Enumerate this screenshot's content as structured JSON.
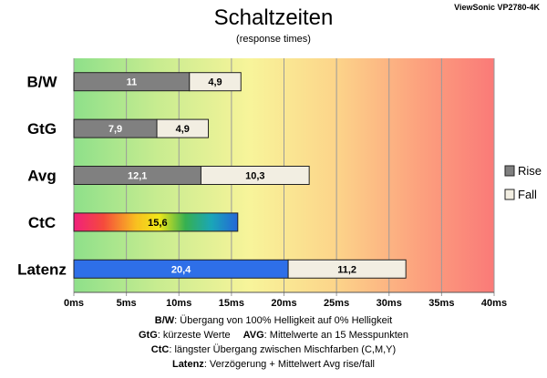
{
  "chart_data": {
    "type": "bar",
    "orientation": "horizontal",
    "stacked": true,
    "title": "Schaltzeiten",
    "subtitle": "(response times)",
    "model": "ViewSonic VP2780-4K",
    "categories": [
      "B/W",
      "GtG",
      "Avg",
      "CtC",
      "Latenz"
    ],
    "series": [
      {
        "name": "Rise",
        "values": [
          11,
          7.9,
          12.1,
          null,
          20.4
        ],
        "labels": [
          "11",
          "7,9",
          "12,1",
          "",
          "20,4"
        ],
        "color": "#808080"
      },
      {
        "name": "Fall",
        "values": [
          4.9,
          4.9,
          10.3,
          null,
          11.2
        ],
        "labels": [
          "4,9",
          "4,9",
          "10,3",
          "",
          "11,2"
        ],
        "color": "#f2eee2"
      }
    ],
    "ctc": {
      "value": 15.6,
      "label": "15,6"
    },
    "latenz_color": "#2e6fe8",
    "x_ticks": [
      "0ms",
      "5ms",
      "10ms",
      "15ms",
      "20ms",
      "25ms",
      "30ms",
      "35ms",
      "40ms"
    ],
    "xlim": [
      0,
      40
    ],
    "legend_position": "right",
    "background": "gradient green-yellow-red"
  },
  "notes": {
    "line1": {
      "bold": "B/W",
      "text": ":  Übergang von 100% Helligkeit auf 0% Helligkeit"
    },
    "line2a": {
      "bold": "GtG",
      "text": ": kürzeste  Werte"
    },
    "line2b": {
      "bold": "AVG",
      "text": ": Mittelwerte  an 15 Messpunkten"
    },
    "line3": {
      "bold": "CtC",
      "text": ": längster Übergang  zwischen Mischfarben (C,M,Y)"
    },
    "line4": {
      "bold": "Latenz",
      "text": ": Verzögerung  + Mittelwert  Avg rise/fall"
    }
  }
}
